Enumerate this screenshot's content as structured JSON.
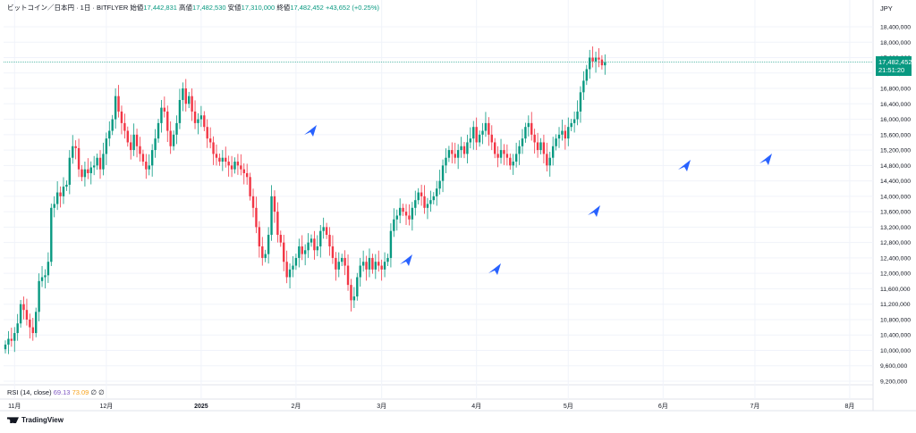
{
  "legend": {
    "pair": "ビットコイン／日本円 · 1日 · BITFLYER",
    "open_label": "始値",
    "open": "17,442,831",
    "high_label": "高値",
    "high": "17,482,530",
    "low_label": "安値",
    "low": "17,310,000",
    "close_label": "終値",
    "close": "17,482,452",
    "change": "+43,652 (+0.25%)"
  },
  "currency": "JPY",
  "price_tag": {
    "price": "17,482,452",
    "countdown": "21:51:20"
  },
  "rsi": {
    "label": "RSI (14, close)",
    "value1": "69.13",
    "value2": "73.09",
    "extra1": "∅",
    "extra2": "∅"
  },
  "branding": "TradingView",
  "colors": {
    "up": "#089981",
    "down": "#f23645",
    "arrow": "#2962ff",
    "grid": "#f0f3fa"
  },
  "chart_data": {
    "type": "candlestick",
    "title": "ビットコイン／日本円 · 1日 · BITFLYER",
    "ylim": [
      9200000,
      18400000
    ],
    "yticks": [
      9200000,
      9600000,
      10000000,
      10400000,
      10800000,
      11200000,
      11600000,
      12000000,
      12400000,
      12800000,
      13200000,
      13600000,
      14000000,
      14400000,
      14800000,
      15200000,
      15600000,
      16000000,
      16400000,
      16800000,
      17200000,
      17600000,
      18000000,
      18400000
    ],
    "ytick_labels": [
      "9,200,000",
      "9,600,000",
      "10,000,000",
      "10,400,000",
      "10,800,000",
      "11,200,000",
      "11,600,000",
      "12,000,000",
      "12,400,000",
      "12,800,000",
      "13,200,000",
      "13,600,000",
      "14,000,000",
      "14,400,000",
      "14,800,000",
      "15,200,000",
      "15,600,000",
      "16,000,000",
      "16,400,000",
      "16,800,000",
      "17,200,000",
      "17,600,000",
      "18,000,000",
      "18,400,000"
    ],
    "xlabels": [
      {
        "label": "11月",
        "i": 3
      },
      {
        "label": "12月",
        "i": 33
      },
      {
        "label": "2025",
        "i": 64
      },
      {
        "label": "2月",
        "i": 95
      },
      {
        "label": "3月",
        "i": 123
      },
      {
        "label": "4月",
        "i": 154
      },
      {
        "label": "5月",
        "i": 184
      },
      {
        "label": "6月",
        "i": 215
      },
      {
        "label": "7月",
        "i": 245
      },
      {
        "label": "8月",
        "i": 276
      }
    ],
    "closes": [
      10150000,
      10300000,
      10250000,
      10450000,
      10700000,
      11200000,
      11050000,
      10800000,
      10600000,
      10450000,
      11000000,
      11800000,
      11900000,
      11950000,
      12300000,
      13700000,
      13800000,
      14100000,
      14000000,
      14250000,
      14300000,
      15000000,
      15300000,
      15250000,
      14700000,
      14500000,
      14700000,
      14600000,
      14750000,
      14800000,
      15000000,
      14700000,
      15100000,
      15500000,
      15700000,
      16000000,
      16600000,
      16200000,
      15900000,
      15700000,
      15400000,
      15200000,
      15600000,
      15300000,
      15100000,
      14900000,
      14700000,
      14800000,
      15200000,
      15500000,
      15900000,
      16300000,
      16200000,
      15700000,
      15300000,
      15600000,
      15900000,
      16500000,
      16800000,
      16400000,
      16600000,
      16200000,
      15900000,
      16000000,
      16100000,
      15800000,
      15500000,
      15400000,
      15100000,
      15000000,
      14900000,
      15000000,
      14900000,
      14800000,
      14700000,
      14900000,
      14800000,
      14700000,
      14600000,
      14500000,
      14000000,
      13700000,
      13200000,
      12700000,
      12400000,
      12500000,
      13000000,
      14000000,
      13600000,
      13000000,
      12800000,
      12300000,
      11900000,
      12100000,
      12200000,
      12400000,
      12700000,
      12500000,
      12600000,
      12800000,
      12900000,
      12600000,
      12700000,
      13100000,
      13200000,
      13000000,
      12700000,
      12400000,
      12100000,
      12300000,
      12400000,
      12200000,
      11700000,
      11300000,
      11400000,
      11900000,
      12200000,
      12300000,
      12100000,
      12400000,
      12100000,
      12300000,
      12200000,
      12100000,
      12300000,
      12400000,
      13100000,
      13400000,
      13500000,
      13700000,
      13600000,
      13500000,
      13400000,
      13700000,
      13900000,
      14100000,
      14000000,
      13700000,
      13800000,
      13900000,
      14000000,
      14200000,
      14400000,
      14800000,
      15000000,
      15200000,
      15100000,
      15000000,
      15200000,
      15300000,
      15100000,
      15400000,
      15500000,
      15800000,
      15400000,
      15600000,
      15700000,
      15900000,
      15600000,
      15400000,
      15100000,
      15000000,
      15200000,
      15100000,
      15000000,
      14800000,
      14900000,
      15100000,
      15300000,
      15500000,
      15800000,
      15900000,
      15600000,
      15400000,
      15200000,
      15400000,
      15100000,
      14800000,
      15000000,
      15300000,
      15500000,
      15600000,
      15700000,
      15500000,
      15800000,
      15900000,
      16000000,
      16200000,
      16700000,
      17000000,
      17300000,
      17600000,
      17500000,
      17600000,
      17550000,
      17400000,
      17482452
    ]
  }
}
